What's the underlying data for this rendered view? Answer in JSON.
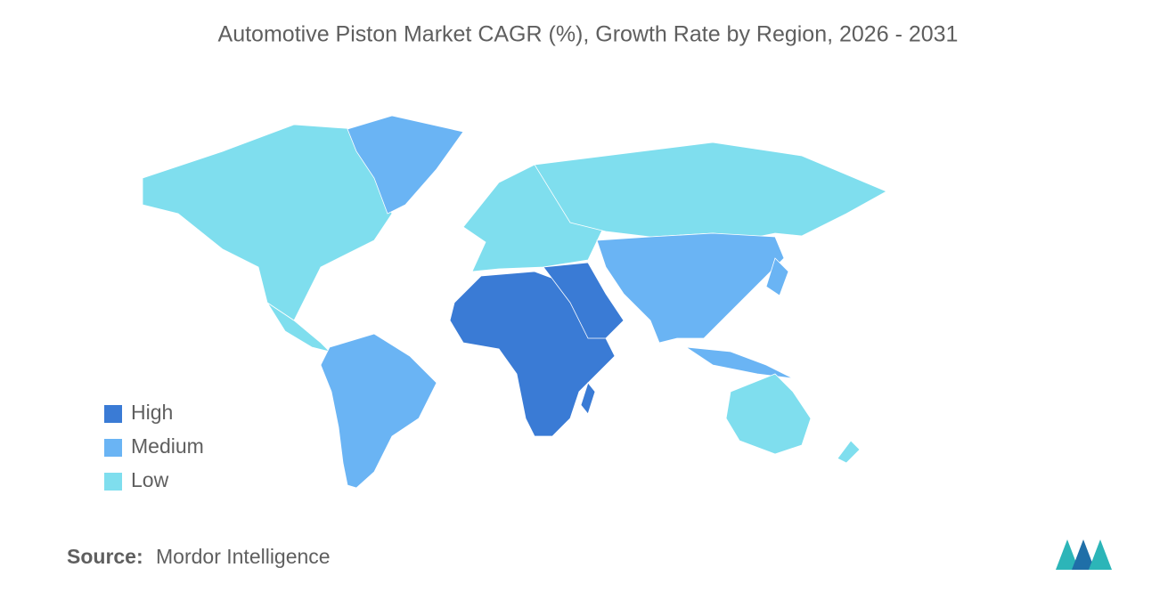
{
  "title": "Automotive Piston Market CAGR (%), Growth Rate by Region, 2026 - 2031",
  "legend": [
    {
      "label": "High",
      "color": "#3a7bd5"
    },
    {
      "label": "Medium",
      "color": "#6ab4f4"
    },
    {
      "label": "Low",
      "color": "#7fdeee"
    }
  ],
  "source": {
    "label": "Source:",
    "text": "Mordor Intelligence"
  }
}
